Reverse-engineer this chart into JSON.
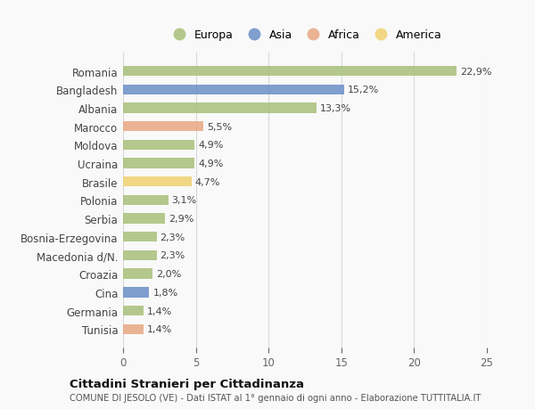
{
  "categories": [
    "Romania",
    "Bangladesh",
    "Albania",
    "Marocco",
    "Moldova",
    "Ucraina",
    "Brasile",
    "Polonia",
    "Serbia",
    "Bosnia-Erzegovina",
    "Macedonia d/N.",
    "Croazia",
    "Cina",
    "Germania",
    "Tunisia"
  ],
  "values": [
    22.9,
    15.2,
    13.3,
    5.5,
    4.9,
    4.9,
    4.7,
    3.1,
    2.9,
    2.3,
    2.3,
    2.0,
    1.8,
    1.4,
    1.4
  ],
  "labels": [
    "22,9%",
    "15,2%",
    "13,3%",
    "5,5%",
    "4,9%",
    "4,9%",
    "4,7%",
    "3,1%",
    "2,9%",
    "2,3%",
    "2,3%",
    "2,0%",
    "1,8%",
    "1,4%",
    "1,4%"
  ],
  "colors": [
    "#a8c07a",
    "#6a8fc7",
    "#a8c07a",
    "#e8a882",
    "#a8c07a",
    "#a8c07a",
    "#f0d070",
    "#a8c07a",
    "#a8c07a",
    "#a8c07a",
    "#a8c07a",
    "#a8c07a",
    "#6a8fc7",
    "#a8c07a",
    "#e8a882"
  ],
  "legend_labels": [
    "Europa",
    "Asia",
    "Africa",
    "America"
  ],
  "legend_colors": [
    "#a8c07a",
    "#6a8fc7",
    "#e8a882",
    "#f0d070"
  ],
  "title": "Cittadini Stranieri per Cittadinanza",
  "subtitle": "COMUNE DI JESOLO (VE) - Dati ISTAT al 1° gennaio di ogni anno - Elaborazione TUTTITALIA.IT",
  "xlim": [
    0,
    25
  ],
  "xticks": [
    0,
    5,
    10,
    15,
    20,
    25
  ],
  "background_color": "#f9f9f9",
  "grid_color": "#d8d8d8",
  "bar_height": 0.55
}
